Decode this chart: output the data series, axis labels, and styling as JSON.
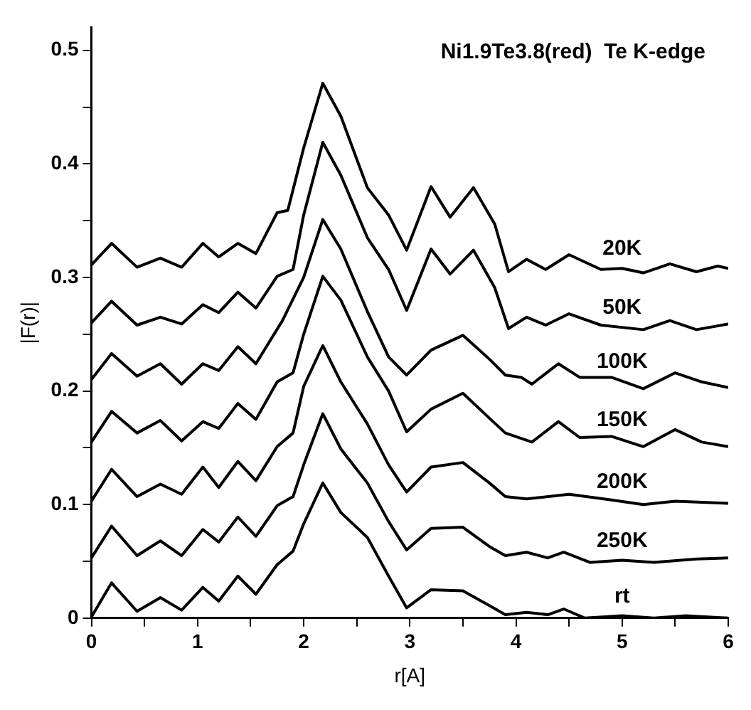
{
  "chart_data": {
    "type": "line",
    "xlabel": "r[A]",
    "ylabel": "|F(r)|",
    "annotations": [
      "Ni1.9Te3.8(red)  Te K-edge"
    ],
    "xlim": [
      0,
      6
    ],
    "ylim": [
      0,
      0.52
    ],
    "xticks": [
      0,
      {
        "value": 0.5,
        "label": null
      },
      1,
      {
        "value": 1.5,
        "label": null
      },
      2,
      {
        "value": 2.5,
        "label": null
      },
      3,
      {
        "value": 3.5,
        "label": null
      },
      4,
      {
        "value": 4.5,
        "label": null
      },
      5,
      {
        "value": 5.5,
        "label": null
      },
      6
    ],
    "yticks": [
      0,
      {
        "value": 0.05,
        "label": null
      },
      0.1,
      {
        "value": 0.15,
        "label": null
      },
      0.2,
      {
        "value": 0.25,
        "label": null
      },
      0.3,
      {
        "value": 0.35,
        "label": null
      },
      0.4,
      {
        "value": 0.45,
        "label": null
      },
      0.5
    ],
    "grid": false,
    "legend": false,
    "marker": "none",
    "line_style": "solid",
    "series": [
      {
        "name": "20K",
        "color": "#000000",
        "x": [
          0,
          0.19,
          0.43,
          0.65,
          0.85,
          1.05,
          1.2,
          1.38,
          1.55,
          1.75,
          1.85,
          2.0,
          2.18,
          2.35,
          2.6,
          2.8,
          2.97,
          3.2,
          3.38,
          3.6,
          3.8,
          3.93,
          4.1,
          4.28,
          4.5,
          4.8,
          5.0,
          5.2,
          5.45,
          5.7,
          5.9,
          6
        ],
        "values": [
          0.311,
          0.33,
          0.309,
          0.317,
          0.309,
          0.33,
          0.318,
          0.33,
          0.321,
          0.357,
          0.359,
          0.414,
          0.471,
          0.442,
          0.379,
          0.355,
          0.324,
          0.38,
          0.353,
          0.379,
          0.347,
          0.305,
          0.316,
          0.307,
          0.32,
          0.307,
          0.308,
          0.304,
          0.312,
          0.305,
          0.31,
          0.308
        ]
      },
      {
        "name": "50K",
        "color": "#000000",
        "x": [
          0,
          0.19,
          0.43,
          0.65,
          0.85,
          1.05,
          1.2,
          1.38,
          1.55,
          1.75,
          1.9,
          2.0,
          2.18,
          2.35,
          2.6,
          2.8,
          2.97,
          3.2,
          3.38,
          3.6,
          3.8,
          3.93,
          4.1,
          4.28,
          4.5,
          4.8,
          5.2,
          5.45,
          5.7,
          6
        ],
        "values": [
          0.26,
          0.279,
          0.258,
          0.265,
          0.259,
          0.276,
          0.269,
          0.287,
          0.273,
          0.301,
          0.307,
          0.355,
          0.419,
          0.39,
          0.335,
          0.307,
          0.271,
          0.325,
          0.303,
          0.324,
          0.291,
          0.255,
          0.265,
          0.258,
          0.268,
          0.258,
          0.254,
          0.262,
          0.254,
          0.259
        ]
      },
      {
        "name": "100K",
        "color": "#000000",
        "x": [
          0,
          0.19,
          0.43,
          0.65,
          0.85,
          1.05,
          1.2,
          1.38,
          1.55,
          1.8,
          2.0,
          2.18,
          2.35,
          2.6,
          2.8,
          2.97,
          3.2,
          3.5,
          3.75,
          3.9,
          4.05,
          4.15,
          4.4,
          4.6,
          4.9,
          5.2,
          5.5,
          5.75,
          6
        ],
        "values": [
          0.21,
          0.233,
          0.213,
          0.224,
          0.206,
          0.224,
          0.218,
          0.239,
          0.224,
          0.262,
          0.3,
          0.351,
          0.325,
          0.27,
          0.23,
          0.214,
          0.236,
          0.249,
          0.228,
          0.214,
          0.212,
          0.206,
          0.224,
          0.212,
          0.212,
          0.202,
          0.216,
          0.208,
          0.203
        ]
      },
      {
        "name": "150K",
        "color": "#000000",
        "x": [
          0,
          0.19,
          0.43,
          0.65,
          0.85,
          1.05,
          1.2,
          1.38,
          1.55,
          1.75,
          1.9,
          2.0,
          2.18,
          2.35,
          2.6,
          2.8,
          2.97,
          3.2,
          3.5,
          3.75,
          3.9,
          4.15,
          4.4,
          4.6,
          4.9,
          5.2,
          5.5,
          5.75,
          6
        ],
        "values": [
          0.155,
          0.182,
          0.163,
          0.174,
          0.156,
          0.173,
          0.167,
          0.189,
          0.175,
          0.208,
          0.216,
          0.25,
          0.301,
          0.28,
          0.23,
          0.2,
          0.164,
          0.184,
          0.198,
          0.176,
          0.163,
          0.155,
          0.173,
          0.159,
          0.16,
          0.151,
          0.166,
          0.155,
          0.151
        ]
      },
      {
        "name": "200K",
        "color": "#000000",
        "x": [
          0,
          0.19,
          0.43,
          0.65,
          0.85,
          1.05,
          1.2,
          1.38,
          1.55,
          1.75,
          1.9,
          2.0,
          2.18,
          2.35,
          2.6,
          2.8,
          2.97,
          3.2,
          3.5,
          3.75,
          3.9,
          4.1,
          4.5,
          4.9,
          5.2,
          5.5,
          6
        ],
        "values": [
          0.103,
          0.131,
          0.107,
          0.118,
          0.109,
          0.133,
          0.115,
          0.138,
          0.121,
          0.151,
          0.163,
          0.204,
          0.24,
          0.208,
          0.171,
          0.135,
          0.111,
          0.133,
          0.137,
          0.119,
          0.107,
          0.105,
          0.109,
          0.104,
          0.1,
          0.103,
          0.101
        ]
      },
      {
        "name": "250K",
        "color": "#000000",
        "x": [
          0,
          0.19,
          0.43,
          0.65,
          0.85,
          1.05,
          1.2,
          1.38,
          1.55,
          1.75,
          1.9,
          2.0,
          2.18,
          2.35,
          2.6,
          2.8,
          2.97,
          3.2,
          3.5,
          3.75,
          3.9,
          4.1,
          4.3,
          4.45,
          4.7,
          5.0,
          5.3,
          5.7,
          6
        ],
        "values": [
          0.053,
          0.081,
          0.055,
          0.068,
          0.055,
          0.078,
          0.067,
          0.089,
          0.072,
          0.099,
          0.107,
          0.135,
          0.18,
          0.149,
          0.119,
          0.085,
          0.06,
          0.079,
          0.08,
          0.063,
          0.055,
          0.058,
          0.053,
          0.058,
          0.049,
          0.051,
          0.049,
          0.052,
          0.053
        ]
      },
      {
        "name": "rt",
        "color": "#000000",
        "x": [
          0,
          0.19,
          0.43,
          0.65,
          0.85,
          1.05,
          1.2,
          1.38,
          1.55,
          1.75,
          1.9,
          2.0,
          2.18,
          2.35,
          2.6,
          2.8,
          2.97,
          3.2,
          3.5,
          3.75,
          3.9,
          4.1,
          4.3,
          4.45,
          4.65,
          5.0,
          5.3,
          5.6,
          6
        ],
        "values": [
          0.001,
          0.031,
          0.006,
          0.018,
          0.007,
          0.027,
          0.015,
          0.037,
          0.021,
          0.047,
          0.059,
          0.083,
          0.119,
          0.093,
          0.071,
          0.037,
          0.009,
          0.025,
          0.024,
          0.011,
          0.003,
          0.005,
          0.003,
          0.008,
          0,
          0.002,
          0,
          0.002,
          0
        ]
      }
    ]
  }
}
